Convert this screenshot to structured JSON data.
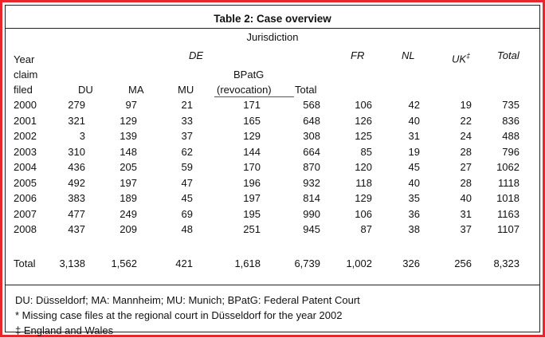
{
  "table": {
    "caption": "Table 2: Case overview",
    "subcaption": "Jurisdiction",
    "group_de": "DE",
    "headers": {
      "year": [
        "Year",
        "claim",
        "filed"
      ],
      "du": "DU",
      "ma": "MA",
      "mu": "MU",
      "bpatg": [
        "BPatG",
        "(revocation)"
      ],
      "total_de": "Total",
      "fr": "FR",
      "nl": "NL",
      "uk": "UK",
      "uk_mark": "‡",
      "total": "Total"
    },
    "rows": [
      [
        "2000",
        "279",
        "97",
        "21",
        "171",
        "568",
        "106",
        "42",
        "19",
        "735"
      ],
      [
        "2001",
        "321",
        "129",
        "33",
        "165",
        "648",
        "126",
        "40",
        "22",
        "836"
      ],
      [
        "2002",
        "3",
        "139",
        "37",
        "129",
        "308",
        "125",
        "31",
        "24",
        "488"
      ],
      [
        "2003",
        "310",
        "148",
        "62",
        "144",
        "664",
        "85",
        "19",
        "28",
        "796"
      ],
      [
        "2004",
        "436",
        "205",
        "59",
        "170",
        "870",
        "120",
        "45",
        "27",
        "1062"
      ],
      [
        "2005",
        "492",
        "197",
        "47",
        "196",
        "932",
        "118",
        "40",
        "28",
        "1118"
      ],
      [
        "2006",
        "383",
        "189",
        "45",
        "197",
        "814",
        "129",
        "35",
        "40",
        "1018"
      ],
      [
        "2007",
        "477",
        "249",
        "69",
        "195",
        "990",
        "106",
        "36",
        "31",
        "1163"
      ],
      [
        "2008",
        "437",
        "209",
        "48",
        "251",
        "945",
        "87",
        "38",
        "37",
        "1107"
      ]
    ],
    "total_row": [
      "Total",
      "3,138",
      "1,562",
      "421",
      "1,618",
      "6,739",
      "1,002",
      "326",
      "256",
      "8,323"
    ],
    "notes": [
      "DU: Düsseldorf; MA: Mannheim; MU: Munich; BPatG: Federal Patent Court",
      "* Missing case files at the regional court in Düsseldorf for the year 2002",
      "‡ England and Wales"
    ]
  }
}
